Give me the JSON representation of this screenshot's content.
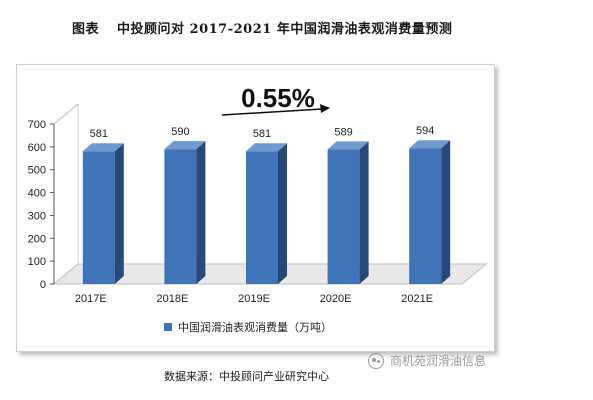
{
  "figure": {
    "label": "图表",
    "title": "中投顾问对 2017-2021 年中国润滑油表观消费量预测"
  },
  "annotation": {
    "growth_text": "0.55%"
  },
  "source_note": "数据来源：中投顾问产业研究中心",
  "watermark": {
    "text": "商机苑润滑油信息",
    "icon": "wechat-icon"
  },
  "colors": {
    "bar_front": "#3f74b8",
    "bar_side": "#27497a",
    "bar_top": "#6f9ad0",
    "floor": "#e9e9e9"
  },
  "chart_data": {
    "type": "bar",
    "style": "3d-column",
    "categories": [
      "2017E",
      "2018E",
      "2019E",
      "2020E",
      "2021E"
    ],
    "series": [
      {
        "name": "中国润滑油表观消费量（万吨）",
        "values": [
          581,
          590,
          581,
          589,
          594
        ]
      }
    ],
    "data_labels": [
      "581",
      "590",
      "581",
      "589",
      "594"
    ],
    "ylim": [
      0,
      700
    ],
    "yticks": [
      0,
      100,
      200,
      300,
      400,
      500,
      600,
      700
    ],
    "grid": false,
    "legend": "bottom-center"
  }
}
